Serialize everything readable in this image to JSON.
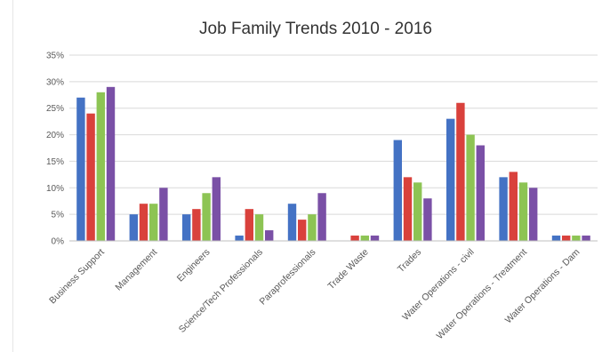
{
  "chart_data": {
    "type": "bar",
    "title": "Job Family Trends 2010 - 2016",
    "xlabel": "",
    "ylabel": "",
    "ylim": [
      0,
      35
    ],
    "yticks": [
      "0%",
      "5%",
      "10%",
      "15%",
      "20%",
      "25%",
      "30%",
      "35%"
    ],
    "ytick_values": [
      0,
      5,
      10,
      15,
      20,
      25,
      30,
      35
    ],
    "grid": true,
    "legend": "none",
    "categories": [
      "Business Support",
      "Management",
      "Engineers",
      "Science/Tech Professionals",
      "Paraprofessionals",
      "Trade Waste",
      "Trades",
      "Water Operations - civil",
      "Water Operations - Treatment",
      "Water Operations - Dam"
    ],
    "series": [
      {
        "color": "#4472C4",
        "values": [
          27,
          5,
          5,
          1,
          7,
          0,
          19,
          23,
          12,
          1
        ]
      },
      {
        "color": "#D9413C",
        "values": [
          24,
          7,
          6,
          6,
          4,
          1,
          12,
          26,
          13,
          1
        ]
      },
      {
        "color": "#8DC454",
        "values": [
          28,
          7,
          9,
          5,
          5,
          1,
          11,
          20,
          11,
          1
        ]
      },
      {
        "color": "#7A50A6",
        "values": [
          29,
          10,
          12,
          2,
          9,
          1,
          8,
          18,
          10,
          1
        ]
      }
    ]
  }
}
